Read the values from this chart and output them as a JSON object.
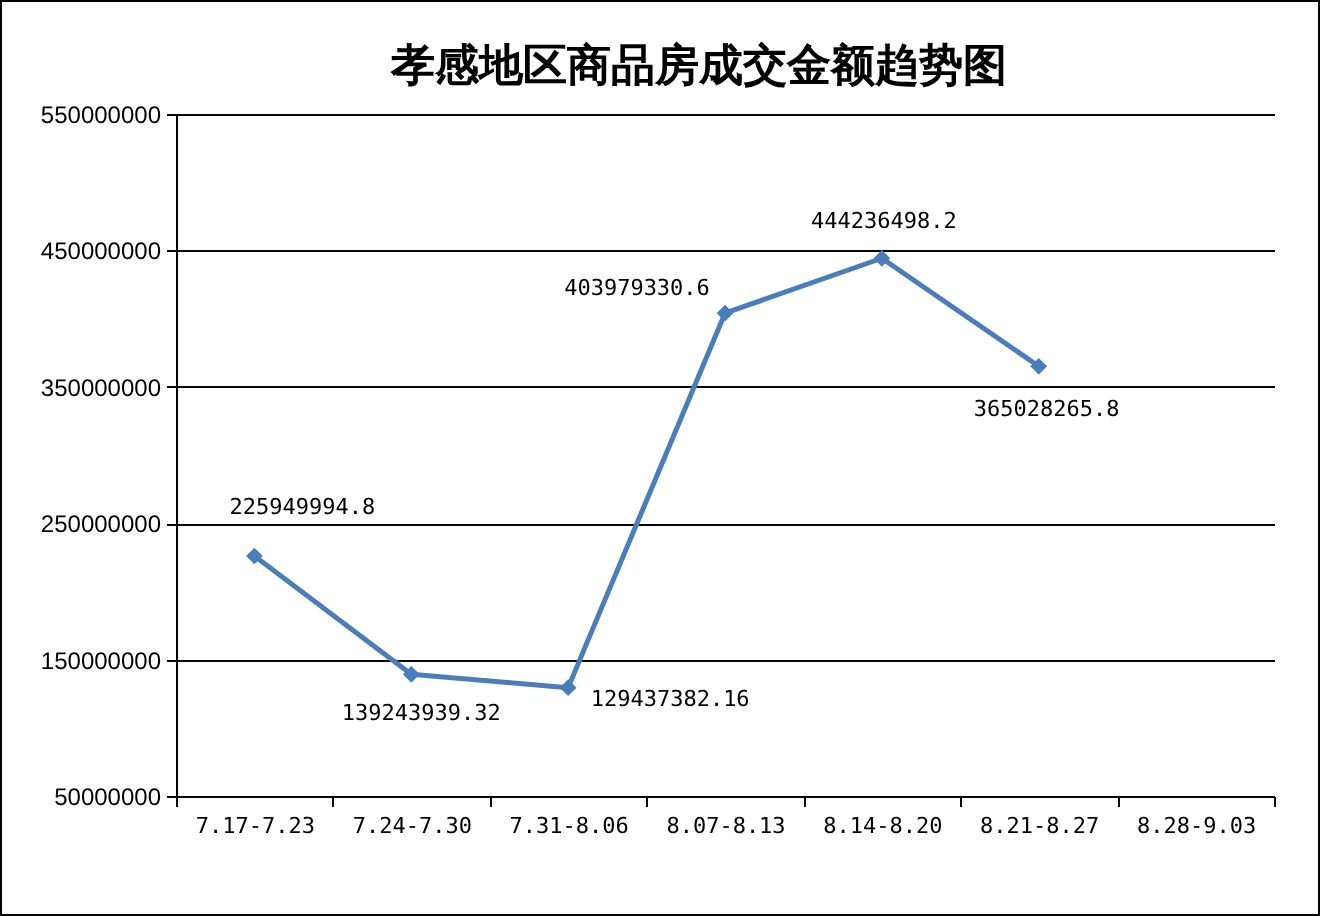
{
  "chart_data": {
    "type": "line",
    "title": "孝感地区商品房成交金额趋势图",
    "categories": [
      "7.17-7.23",
      "7.24-7.30",
      "7.31-8.06",
      "8.07-8.13",
      "8.14-8.20",
      "8.21-8.27",
      "8.28-9.03"
    ],
    "values": [
      225949994.8,
      139243939.32,
      129437382.16,
      403979330.6,
      444236498.2,
      365028265.8,
      null
    ],
    "value_labels": [
      "225949994.8",
      "139243939.32",
      "129437382.16",
      "403979330.6",
      "444236498.2",
      "365028265.8",
      null
    ],
    "color": "#4a7ebb",
    "marker": "diamond",
    "grid": "y",
    "ylim": [
      50000000,
      550000000
    ],
    "yticks": [
      50000000,
      150000000,
      250000000,
      350000000,
      450000000,
      550000000
    ]
  }
}
